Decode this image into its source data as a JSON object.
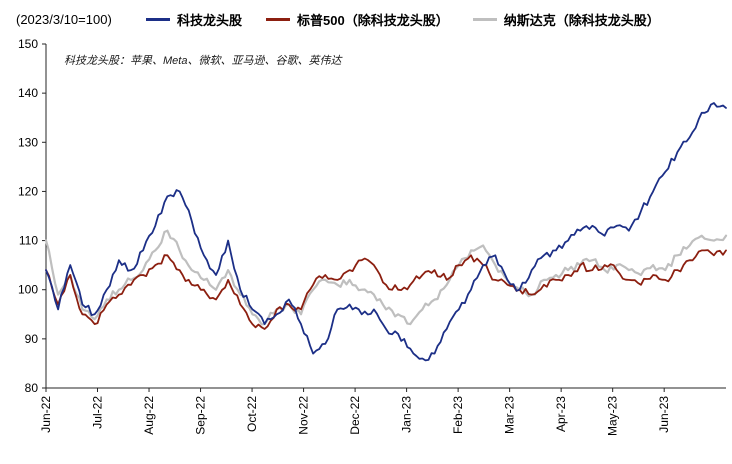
{
  "header": {
    "index_note": "(2023/3/10=100)",
    "annotation": "科技龙头股：苹果、Meta、微软、亚马逊、谷歌、英伟达"
  },
  "legend": [
    {
      "label": "科技龙头股",
      "color": "#1c2f87"
    },
    {
      "label": "标普500（除科技龙头股）",
      "color": "#8c1f10"
    },
    {
      "label": "纳斯达克（除科技龙头股）",
      "color": "#bfbfbf"
    }
  ],
  "chart_data": {
    "type": "line",
    "title": "",
    "xlabel": "",
    "ylabel": "",
    "grid": false,
    "legend_position": "top",
    "x_tick_labels": [
      "Jun-22",
      "Jul-22",
      "Aug-22",
      "Sep-22",
      "Oct-22",
      "Nov-22",
      "Dec-22",
      "Jan-23",
      "Feb-23",
      "Mar-23",
      "Apr-23",
      "May-23",
      "Jun-23"
    ],
    "x_range_months": [
      0,
      13.2
    ],
    "ylim": [
      80,
      150
    ],
    "y_ticks": [
      80,
      90,
      100,
      110,
      120,
      130,
      140,
      150
    ],
    "series": [
      {
        "name": "科技龙头股",
        "color": "#1c2f87",
        "values": [
          104,
          96,
          105,
          97,
          95,
          100,
          106,
          104,
          108,
          113,
          119,
          120,
          114,
          107,
          103,
          110,
          100,
          96,
          93,
          95,
          98,
          93,
          87,
          89,
          96,
          97,
          95,
          96,
          92,
          91,
          88,
          86,
          87,
          92,
          96,
          100,
          105,
          107,
          102,
          100,
          104,
          107,
          108,
          110,
          112,
          113,
          111,
          113,
          112,
          116,
          120,
          124,
          128,
          131,
          136,
          138,
          137
        ]
      },
      {
        "name": "标普500（除科技龙头股）",
        "color": "#8c1f10",
        "values": [
          104,
          97,
          103,
          95,
          93,
          97,
          99,
          101,
          103,
          105,
          107,
          104,
          101,
          100,
          98,
          102,
          97,
          93,
          92,
          96,
          97,
          96,
          101,
          103,
          102,
          104,
          106,
          105,
          101,
          100,
          101,
          103,
          104,
          102,
          105,
          107,
          105,
          102,
          101,
          100,
          99,
          101,
          102,
          103,
          105,
          104,
          105,
          104,
          102,
          101,
          103,
          102,
          104,
          106,
          108,
          107,
          108
        ]
      },
      {
        "name": "纳斯达克（除科技龙头股）",
        "color": "#bfbfbf",
        "values": [
          110,
          99,
          103,
          96,
          94,
          98,
          100,
          102,
          104,
          108,
          112,
          108,
          104,
          102,
          100,
          104,
          99,
          95,
          93,
          96,
          97,
          95,
          100,
          102,
          101,
          102,
          100,
          99,
          96,
          95,
          93,
          96,
          98,
          101,
          105,
          108,
          109,
          105,
          102,
          100,
          99,
          102,
          103,
          104,
          105,
          106,
          104,
          105,
          104,
          103,
          105,
          104,
          107,
          109,
          111,
          110,
          111
        ]
      }
    ]
  }
}
